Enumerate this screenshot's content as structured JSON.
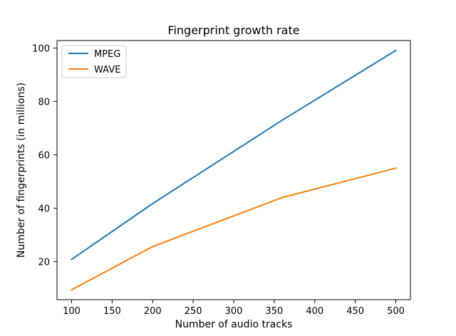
{
  "chart_data": {
    "type": "line",
    "title": "Fingerprint growth rate",
    "xlabel": "Number of audio tracks",
    "ylabel": "Number of fingerprints (in millions)",
    "xlim": [
      82,
      518
    ],
    "ylim": [
      5.7,
      102.8
    ],
    "xticks": [
      100,
      150,
      200,
      250,
      300,
      350,
      400,
      450,
      500
    ],
    "yticks": [
      20,
      40,
      60,
      80,
      100
    ],
    "grid": false,
    "legend": {
      "placement": "top-left"
    },
    "series": [
      {
        "name": "MPEG",
        "color": "#1f77b4",
        "x": [
          100,
          200,
          360,
          500
        ],
        "y": [
          20.8,
          41.7,
          73.0,
          99.1
        ]
      },
      {
        "name": "WAVE",
        "color": "#ff7f0e",
        "x": [
          100,
          200,
          360,
          500
        ],
        "y": [
          9.4,
          25.6,
          44.0,
          55.0
        ]
      }
    ]
  }
}
